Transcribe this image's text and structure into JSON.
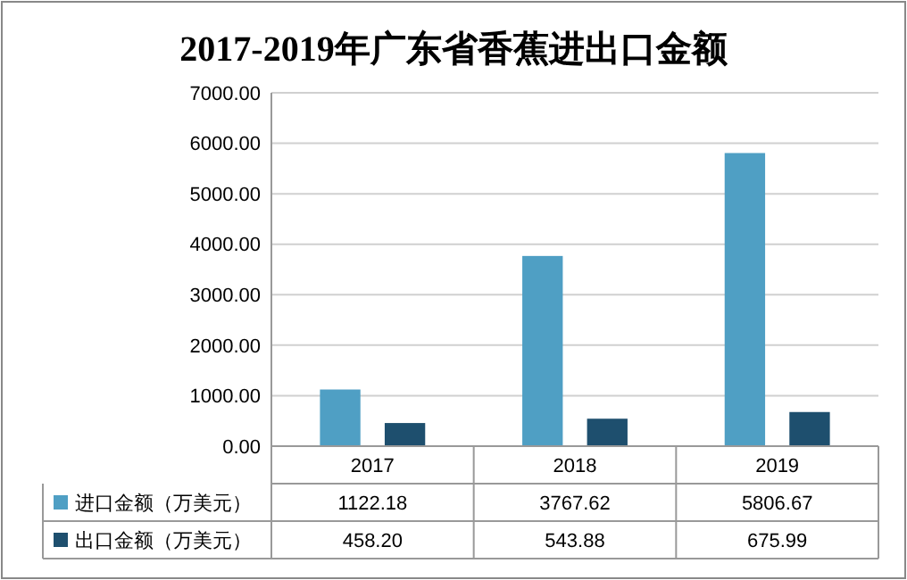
{
  "chart_data": {
    "type": "bar",
    "title": "2017-2019年广东省香蕉进出口金额",
    "categories": [
      "2017",
      "2018",
      "2019"
    ],
    "series": [
      {
        "name": "进口金额（万美元）",
        "color": "#4f9fc4",
        "values": [
          1122.18,
          3767.62,
          5806.67
        ],
        "value_labels": [
          "1122.18",
          "3767.62",
          "5806.67"
        ]
      },
      {
        "name": "出口金额（万美元）",
        "color": "#1e4f6e",
        "values": [
          458.2,
          543.88,
          675.99
        ],
        "value_labels": [
          "458.20",
          "543.88",
          "675.99"
        ]
      }
    ],
    "ylim": [
      0,
      7000
    ],
    "yticks": [
      {
        "value": 0,
        "label": "0.00"
      },
      {
        "value": 1000,
        "label": "1000.00"
      },
      {
        "value": 2000,
        "label": "2000.00"
      },
      {
        "value": 3000,
        "label": "3000.00"
      },
      {
        "value": 4000,
        "label": "4000.00"
      },
      {
        "value": 5000,
        "label": "5000.00"
      },
      {
        "value": 6000,
        "label": "6000.00"
      },
      {
        "value": 7000,
        "label": "7000.00"
      }
    ],
    "grid": "y",
    "legend": "bottom"
  }
}
